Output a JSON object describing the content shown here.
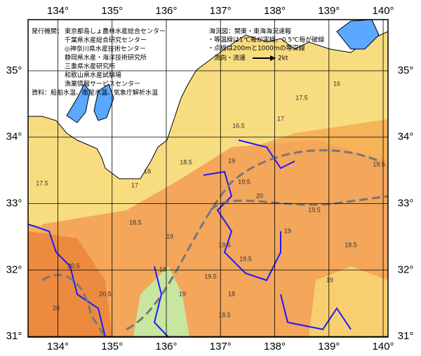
{
  "map": {
    "chart_title": "海況図：関東・東海海況速報",
    "notes": [
      "・等温線は1℃毎が実線、0.5℃毎が破線",
      "・点線は200mと1000mの等深線"
    ],
    "current_legend": {
      "label": "流向・流速",
      "speed": "2kt"
    },
    "publisher_label": "発行機関：",
    "publishers": [
      "東京都島しょ農林水産総合センター",
      "千葉県水産総合研究センター",
      "◎神奈川県水産技術センター",
      "静岡県水産・海洋技術研究所",
      "三重県水産研究所",
      "和歌山県水産試験場",
      "漁業情報サービスセンター"
    ],
    "source": "資料：船舶水温、衛星水温、気象庁解析水温",
    "xlim": [
      133.45,
      140.09
    ],
    "ylim": [
      30.99,
      35.77
    ],
    "xticks": [
      {
        "value": 134,
        "label": "134°"
      },
      {
        "value": 135,
        "label": "135°"
      },
      {
        "value": 136,
        "label": "136°"
      },
      {
        "value": 137,
        "label": "137°"
      },
      {
        "value": 138,
        "label": "138°"
      },
      {
        "value": 139,
        "label": "139°"
      },
      {
        "value": 140,
        "label": "140°"
      }
    ],
    "yticks": [
      {
        "value": 31,
        "label": "31°"
      },
      {
        "value": 32,
        "label": "32°"
      },
      {
        "value": 33,
        "label": "33°"
      },
      {
        "value": 34,
        "label": "34°"
      },
      {
        "value": 35,
        "label": "35°"
      }
    ],
    "grid": true,
    "contour_labels": [
      17.5,
      18,
      18.5,
      19,
      19.5,
      20,
      20.5,
      17,
      18.5,
      19,
      19.5,
      19.5,
      18,
      19,
      19.5,
      18.5,
      19,
      16.5,
      17,
      17.5,
      16,
      19.5,
      18,
      20,
      19,
      18.5,
      20.5,
      19.5
    ]
  }
}
